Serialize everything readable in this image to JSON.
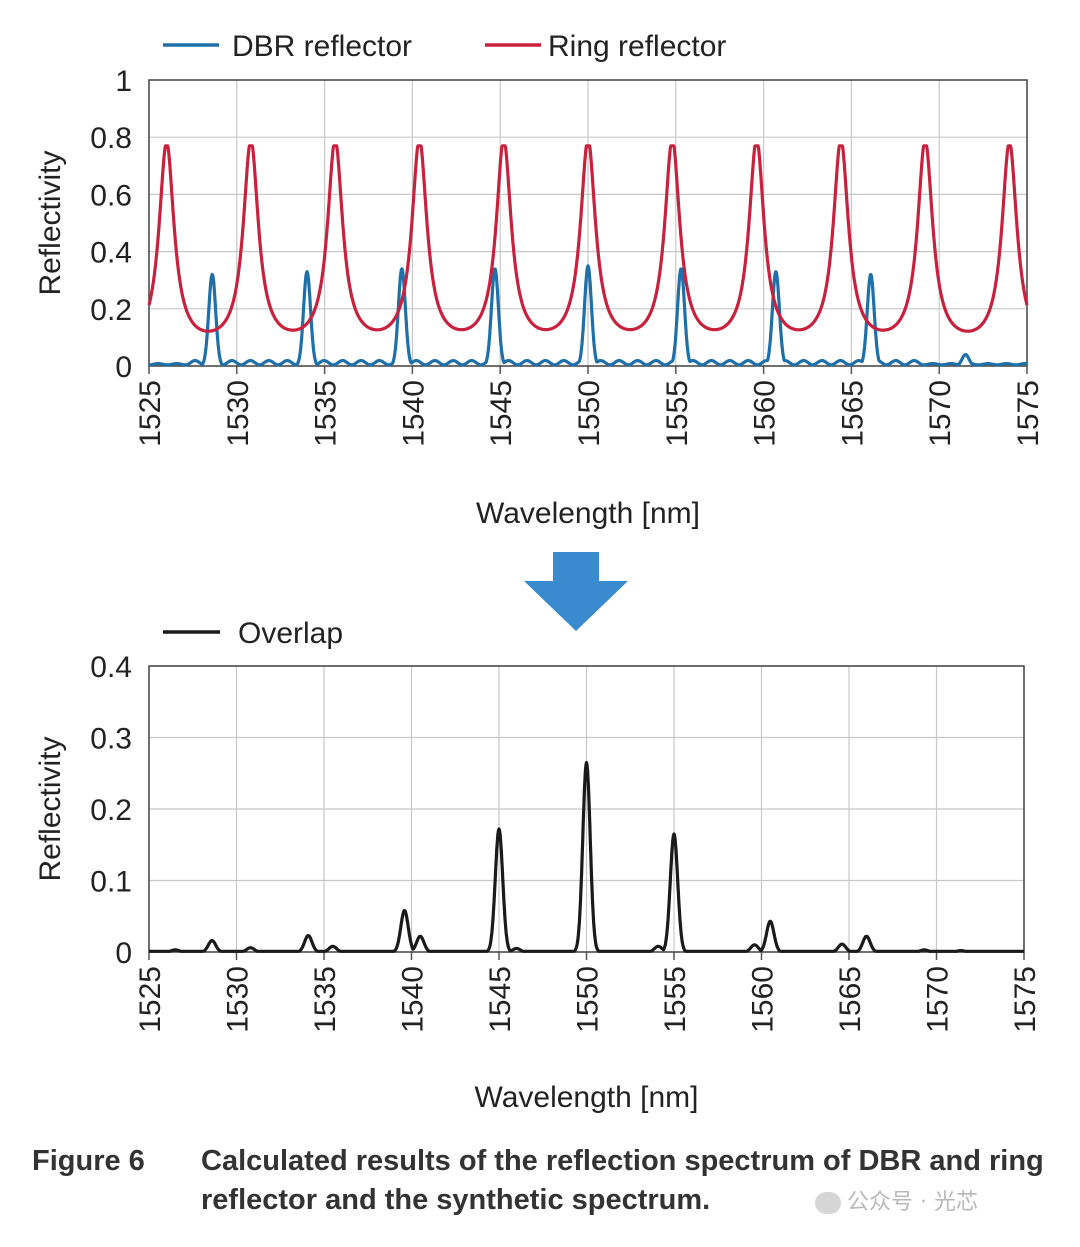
{
  "figure": {
    "label": "Figure 6",
    "caption": "Calculated results of the reflection spectrum of DBR and ring reflector and the synthetic spectrum.",
    "watermark": "公众号 · 光芯",
    "arrow_color": "#3a8ad0"
  },
  "chart_data": [
    {
      "type": "line",
      "id": "top",
      "xlabel": "Wavelength [nm]",
      "ylabel": "Reflectivity",
      "xlim": [
        1525,
        1575
      ],
      "ylim": [
        0,
        1
      ],
      "xticks": [
        "1525",
        "1530",
        "1535",
        "1540",
        "1545",
        "1550",
        "1555",
        "1560",
        "1565",
        "1570",
        "1575"
      ],
      "yticks": [
        "0",
        "0.2",
        "0.4",
        "0.6",
        "0.8",
        "1"
      ],
      "grid": true,
      "legend_position": "top",
      "series": [
        {
          "name": "DBR reflector",
          "color": "#1f6fa8",
          "model": "dbr",
          "peaks": [
            {
              "x": 1528.6,
              "y": 0.32
            },
            {
              "x": 1534.0,
              "y": 0.33
            },
            {
              "x": 1539.4,
              "y": 0.34
            },
            {
              "x": 1544.7,
              "y": 0.34
            },
            {
              "x": 1550.0,
              "y": 0.35
            },
            {
              "x": 1555.3,
              "y": 0.34
            },
            {
              "x": 1560.7,
              "y": 0.33
            },
            {
              "x": 1566.1,
              "y": 0.32
            },
            {
              "x": 1571.5,
              "y": 0.04
            }
          ],
          "ripple_amplitude": 0.025
        },
        {
          "name": "Ring reflector",
          "color": "#c8213d",
          "model": "ring",
          "peaks": [
            {
              "x": 1526.0,
              "y": 0.77
            },
            {
              "x": 1530.8,
              "y": 0.77
            },
            {
              "x": 1535.6,
              "y": 0.77
            },
            {
              "x": 1540.4,
              "y": 0.77
            },
            {
              "x": 1545.2,
              "y": 0.77
            },
            {
              "x": 1550.0,
              "y": 0.77
            },
            {
              "x": 1554.8,
              "y": 0.77
            },
            {
              "x": 1559.6,
              "y": 0.77
            },
            {
              "x": 1564.4,
              "y": 0.77
            },
            {
              "x": 1569.2,
              "y": 0.77
            },
            {
              "x": 1574.0,
              "y": 0.77
            }
          ],
          "floor": 0.05
        }
      ]
    },
    {
      "type": "line",
      "id": "bottom",
      "xlabel": "Wavelength [nm]",
      "ylabel": "Reflectivity",
      "xlim": [
        1525,
        1575
      ],
      "ylim": [
        0,
        0.4
      ],
      "xticks": [
        "1525",
        "1530",
        "1535",
        "1540",
        "1545",
        "1550",
        "1555",
        "1560",
        "1565",
        "1570",
        "1575"
      ],
      "yticks": [
        "0",
        "0.1",
        "0.2",
        "0.3",
        "0.4"
      ],
      "grid": true,
      "legend_position": "top-left",
      "series": [
        {
          "name": "Overlap",
          "color": "#1a1a1a",
          "model": "peaks",
          "peaks": [
            {
              "x": 1526.5,
              "y": 0.003
            },
            {
              "x": 1528.6,
              "y": 0.016
            },
            {
              "x": 1530.8,
              "y": 0.006
            },
            {
              "x": 1534.1,
              "y": 0.023
            },
            {
              "x": 1535.5,
              "y": 0.008
            },
            {
              "x": 1539.6,
              "y": 0.058
            },
            {
              "x": 1540.5,
              "y": 0.022
            },
            {
              "x": 1545.0,
              "y": 0.172
            },
            {
              "x": 1546.0,
              "y": 0.005
            },
            {
              "x": 1550.0,
              "y": 0.265
            },
            {
              "x": 1554.1,
              "y": 0.008
            },
            {
              "x": 1555.0,
              "y": 0.165
            },
            {
              "x": 1559.6,
              "y": 0.01
            },
            {
              "x": 1560.5,
              "y": 0.043
            },
            {
              "x": 1564.6,
              "y": 0.011
            },
            {
              "x": 1566.0,
              "y": 0.022
            },
            {
              "x": 1569.3,
              "y": 0.003
            },
            {
              "x": 1571.4,
              "y": 0.002
            }
          ]
        }
      ]
    }
  ]
}
